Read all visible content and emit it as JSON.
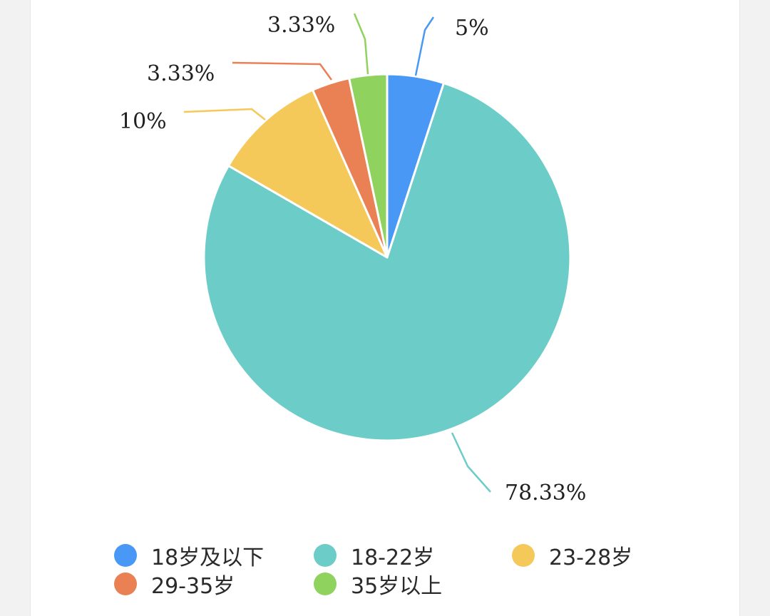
{
  "chart_data": {
    "type": "pie",
    "categories": [
      "18岁及以下",
      "18-22岁",
      "23-28岁",
      "29-35岁",
      "35岁以上"
    ],
    "values": [
      5,
      78.33,
      10,
      3.33,
      3.33
    ],
    "labels": [
      "5%",
      "78.33%",
      "10%",
      "3.33%",
      "3.33%"
    ],
    "colors": [
      "#4a98f6",
      "#6ccdc8",
      "#f5c85a",
      "#ea8155",
      "#8fd25e"
    ],
    "legend_position": "bottom"
  }
}
